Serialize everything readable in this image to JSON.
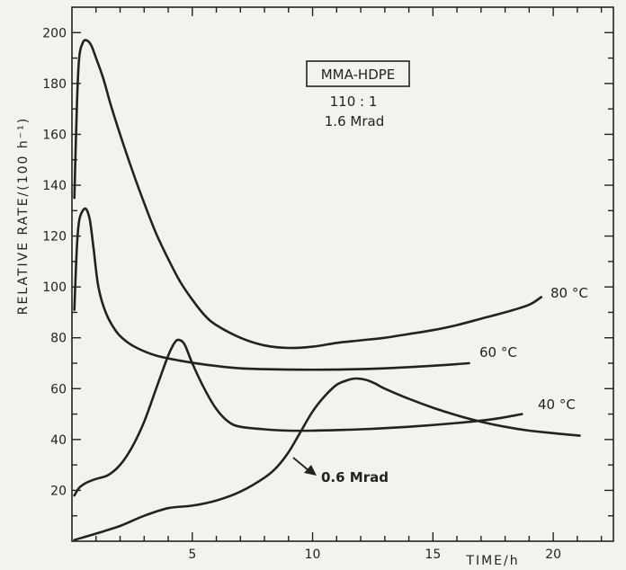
{
  "chart_data": {
    "type": "line",
    "xlabel": "TIME/h",
    "ylabel": "RELATIVE RATE/(100 h⁻¹)",
    "xlim": [
      0,
      22.5
    ],
    "ylim": [
      0,
      210
    ],
    "x_ticks": [
      5,
      10,
      15,
      20
    ],
    "y_ticks": [
      20,
      40,
      60,
      80,
      100,
      120,
      140,
      160,
      180,
      200
    ],
    "grid": false,
    "annotations": {
      "box": "MMA-HDPE",
      "ratio": "110 : 1",
      "dose": "1.6 Mrad",
      "pointer": "0.6 Mrad"
    },
    "series": [
      {
        "name": "80 °C",
        "x": [
          0.1,
          0.2,
          0.3,
          0.45,
          0.6,
          0.8,
          1.0,
          1.3,
          1.6,
          2.0,
          2.5,
          3.0,
          3.5,
          4.0,
          4.5,
          5.0,
          5.5,
          6.0,
          7.0,
          8.0,
          9.0,
          10.0,
          11.0,
          12.0,
          13.0,
          14.0,
          15.0,
          16.0,
          17.0,
          18.0,
          19.0,
          19.5
        ],
        "y": [
          135,
          170,
          190,
          196,
          197,
          195,
          190,
          182,
          172,
          160,
          146,
          133,
          121,
          111,
          102,
          95,
          89,
          85,
          80,
          77,
          76,
          76.5,
          78,
          79,
          80,
          81.5,
          83,
          85,
          87.5,
          90,
          93,
          96
        ]
      },
      {
        "name": "60 °C",
        "x": [
          0.1,
          0.2,
          0.3,
          0.45,
          0.6,
          0.75,
          0.9,
          1.1,
          1.4,
          1.8,
          2.2,
          2.7,
          3.5,
          4.5,
          5.5,
          7.0,
          9.0,
          11.0,
          13.0,
          15.0,
          16.5
        ],
        "y": [
          91,
          115,
          126,
          130,
          130.5,
          126,
          115,
          100,
          90,
          83,
          79,
          76,
          73,
          71,
          69.5,
          68,
          67.5,
          67.5,
          68,
          69,
          70
        ]
      },
      {
        "name": "40 °C",
        "x": [
          0.1,
          0.3,
          0.6,
          1.0,
          1.5,
          2.0,
          2.5,
          3.0,
          3.5,
          4.0,
          4.3,
          4.5,
          4.7,
          5.0,
          5.5,
          6.0,
          6.5,
          7.0,
          8.0,
          9.0,
          10.0,
          12.0,
          14.0,
          16.0,
          17.5,
          18.7
        ],
        "y": [
          18,
          21,
          23,
          24.5,
          26,
          30,
          37,
          47,
          60,
          73,
          78.5,
          79,
          77,
          70,
          60,
          52,
          47,
          45,
          44,
          43.5,
          43.5,
          44,
          45,
          46.5,
          48,
          50
        ]
      },
      {
        "name": "0.6 Mrad",
        "x": [
          0.1,
          1.0,
          2.0,
          3.0,
          4.0,
          5.0,
          6.0,
          7.0,
          8.0,
          8.5,
          9.0,
          9.5,
          10.0,
          10.5,
          11.0,
          11.5,
          11.8,
          12.2,
          12.6,
          13.0,
          14.0,
          15.0,
          16.0,
          17.0,
          18.0,
          19.0,
          20.0,
          21.1
        ],
        "y": [
          0.5,
          3,
          6,
          10,
          13,
          14,
          16,
          19.5,
          25,
          29,
          35,
          43,
          51,
          57,
          61.5,
          63.5,
          64,
          63.5,
          62,
          60,
          56,
          52.5,
          49.5,
          47,
          45,
          43.5,
          42.5,
          41.5
        ]
      }
    ]
  }
}
